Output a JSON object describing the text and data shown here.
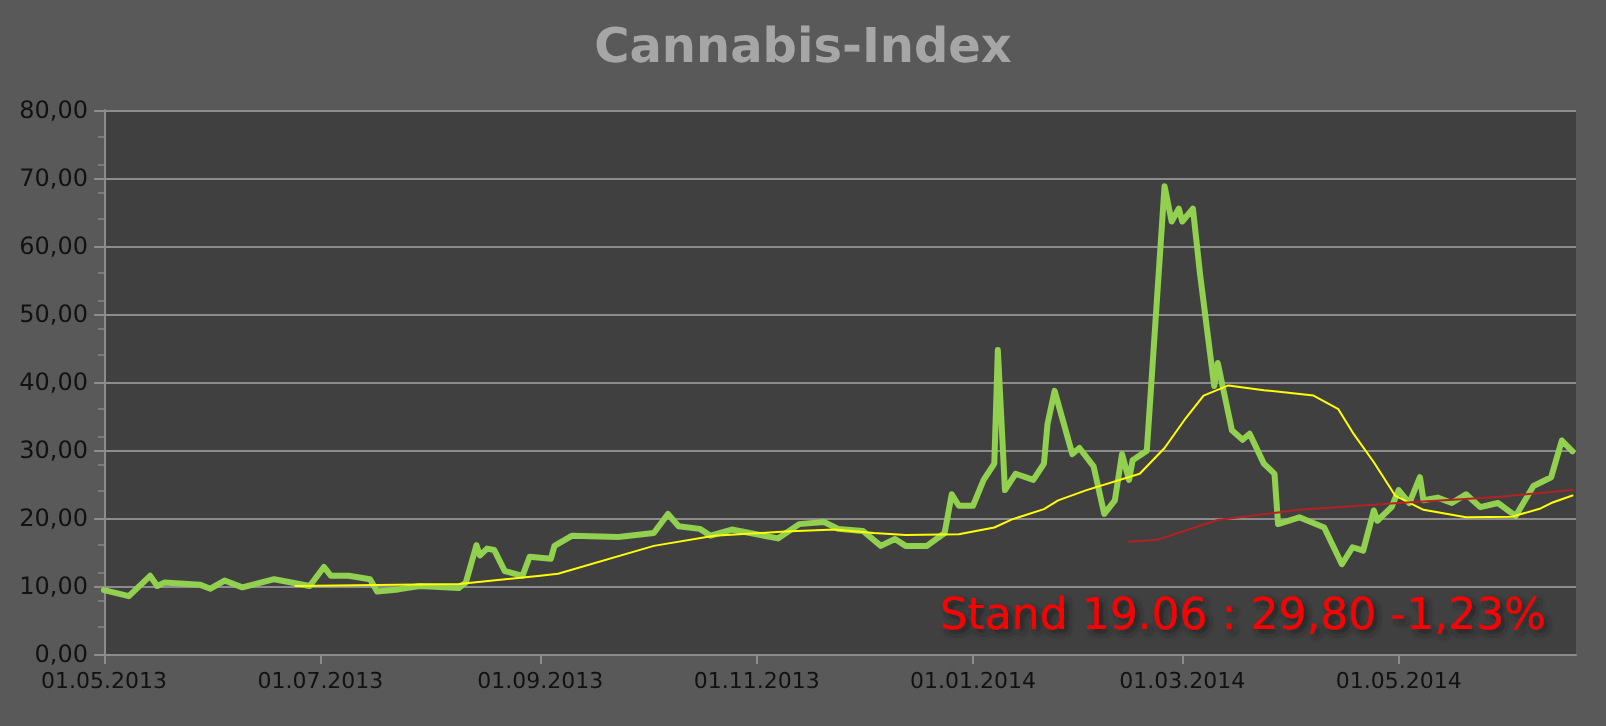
{
  "chart_data": {
    "type": "line",
    "title": "Cannabis-Index",
    "annotations": [
      "Stand 19.06 : 29,80 -1,23%"
    ],
    "xlim": [
      "2013-05-01",
      "2014-06-20"
    ],
    "xticks": [
      {
        "value": "2013-05-01",
        "label": "01.05.2013"
      },
      {
        "value": "2013-07-01",
        "label": "01.07.2013"
      },
      {
        "value": "2013-09-01",
        "label": "01.09.2013"
      },
      {
        "value": "2013-11-01",
        "label": "01.11.2013"
      },
      {
        "value": "2014-01-01",
        "label": "01.01.2014"
      },
      {
        "value": "2014-03-01",
        "label": "01.03.2014"
      },
      {
        "value": "2014-05-01",
        "label": "01.05.2014"
      }
    ],
    "ylim": [
      0,
      80
    ],
    "yticks": [
      {
        "value": 0,
        "label": "0,00"
      },
      {
        "value": 10,
        "label": "10,00"
      },
      {
        "value": 20,
        "label": "20,00"
      },
      {
        "value": 30,
        "label": "30,00"
      },
      {
        "value": 40,
        "label": "40,00"
      },
      {
        "value": 50,
        "label": "50,00"
      },
      {
        "value": 60,
        "label": "60,00"
      },
      {
        "value": 70,
        "label": "70,00"
      },
      {
        "value": 80,
        "label": "80,00"
      }
    ],
    "grid": "y",
    "marker": "none",
    "line_style": "solid",
    "series": [
      {
        "color": "#92d050",
        "x": [
          "2013-05-01",
          "2013-05-08",
          "2013-05-14",
          "2013-05-16",
          "2013-05-18",
          "2013-05-28",
          "2013-05-31",
          "2013-06-04",
          "2013-06-09",
          "2013-06-18",
          "2013-06-28",
          "2013-07-02",
          "2013-07-04",
          "2013-07-09",
          "2013-07-15",
          "2013-07-17",
          "2013-07-23",
          "2013-07-29",
          "2013-08-09",
          "2013-08-11",
          "2013-08-14",
          "2013-08-15",
          "2013-08-17",
          "2013-08-19",
          "2013-08-22",
          "2013-08-27",
          "2013-08-29",
          "2013-09-04",
          "2013-09-05",
          "2013-09-10",
          "2013-09-23",
          "2013-10-03",
          "2013-10-07",
          "2013-10-10",
          "2013-10-16",
          "2013-10-19",
          "2013-10-25",
          "2013-11-07",
          "2013-11-13",
          "2013-11-20",
          "2013-11-24",
          "2013-12-01",
          "2013-12-06",
          "2013-12-10",
          "2013-12-13",
          "2013-12-19",
          "2013-12-24",
          "2013-12-26",
          "2013-12-28",
          "2014-01-01",
          "2014-01-04",
          "2014-01-07",
          "2014-01-08",
          "2014-01-10",
          "2014-01-13",
          "2014-01-18",
          "2014-01-21",
          "2014-01-22",
          "2014-01-24",
          "2014-01-29",
          "2014-01-31",
          "2014-02-04",
          "2014-02-07",
          "2014-02-10",
          "2014-02-12",
          "2014-02-14",
          "2014-02-15",
          "2014-02-19",
          "2014-02-24",
          "2014-02-26",
          "2014-02-28",
          "2014-03-01",
          "2014-03-04",
          "2014-03-06",
          "2014-03-10",
          "2014-03-11",
          "2014-03-15",
          "2014-03-18",
          "2014-03-20",
          "2014-03-24",
          "2014-03-27",
          "2014-03-28",
          "2014-04-03",
          "2014-04-10",
          "2014-04-15",
          "2014-04-18",
          "2014-04-21",
          "2014-04-24",
          "2014-04-25",
          "2014-04-29",
          "2014-05-01",
          "2014-05-04",
          "2014-05-07",
          "2014-05-08",
          "2014-05-12",
          "2014-05-16",
          "2014-05-20",
          "2014-05-24",
          "2014-05-29",
          "2014-06-03",
          "2014-06-08",
          "2014-06-13",
          "2014-06-16",
          "2014-06-19"
        ],
        "values": [
          9.4,
          8.5,
          11.5,
          10,
          10.5,
          10.2,
          9.6,
          10.8,
          9.8,
          11,
          10,
          12.8,
          11.5,
          11.5,
          11,
          9.2,
          9.5,
          10,
          9.7,
          10.5,
          16,
          14.5,
          15.5,
          15.3,
          12.2,
          11.5,
          14.3,
          14,
          15.9,
          17.4,
          17.2,
          17.8,
          20.6,
          18.8,
          18.4,
          17.4,
          18.3,
          17,
          19.1,
          19.4,
          18.4,
          18.1,
          15.9,
          16.9,
          15.9,
          15.9,
          17.8,
          23.5,
          21.8,
          21.8,
          25.6,
          28,
          44.7,
          24.1,
          26.5,
          25.6,
          28,
          33.8,
          38.7,
          29.4,
          30.3,
          27.6,
          20.6,
          22.6,
          29.4,
          25.6,
          28.5,
          29.9,
          68.8,
          63.6,
          65.5,
          63.6,
          65.5,
          55.9,
          39.4,
          42.8,
          32.9,
          31.5,
          32.4,
          28,
          26.5,
          19.1,
          20.1,
          18.6,
          13.2,
          15.7,
          15.2,
          21.1,
          19.6,
          21.6,
          24.1,
          22.2,
          26,
          22.6,
          23,
          22.2,
          23.5,
          21.6,
          22.2,
          20.3,
          24.7,
          26,
          31.4,
          29.8
        ]
      },
      {
        "color": "#ffff00",
        "x": [
          "2013-06-24",
          "2013-08-09",
          "2013-09-01",
          "2013-09-06",
          "2013-10-03",
          "2013-10-20",
          "2013-11-09",
          "2013-11-23",
          "2013-12-04",
          "2013-12-13",
          "2013-12-28",
          "2014-01-07",
          "2014-01-12",
          "2014-01-21",
          "2014-01-25",
          "2014-02-02",
          "2014-02-17",
          "2014-02-24",
          "2014-03-02",
          "2014-03-07",
          "2014-03-14",
          "2014-03-24",
          "2014-04-07",
          "2014-04-14",
          "2014-04-18",
          "2014-04-24",
          "2014-04-30",
          "2014-05-08",
          "2014-05-20",
          "2014-06-02",
          "2014-06-10",
          "2014-06-13",
          "2014-06-19"
        ],
        "values": [
          10,
          10.3,
          11.5,
          11.8,
          15.9,
          17.4,
          18,
          18.3,
          17.8,
          17.5,
          17.6,
          18.6,
          19.8,
          21.3,
          22.6,
          24.1,
          26.5,
          30.3,
          34.7,
          38,
          39.5,
          38.8,
          38,
          36,
          32.6,
          28.2,
          23.3,
          21.2,
          20.1,
          20.2,
          21.4,
          22.2,
          23.3
        ]
      },
      {
        "color": "#b22222",
        "x": [
          "2014-02-14",
          "2014-02-22",
          "2014-03-11",
          "2014-04-03",
          "2014-05-01",
          "2014-05-29",
          "2014-06-19"
        ],
        "values": [
          16.5,
          16.8,
          19.7,
          21.2,
          22.2,
          23.1,
          24.1
        ]
      }
    ]
  }
}
